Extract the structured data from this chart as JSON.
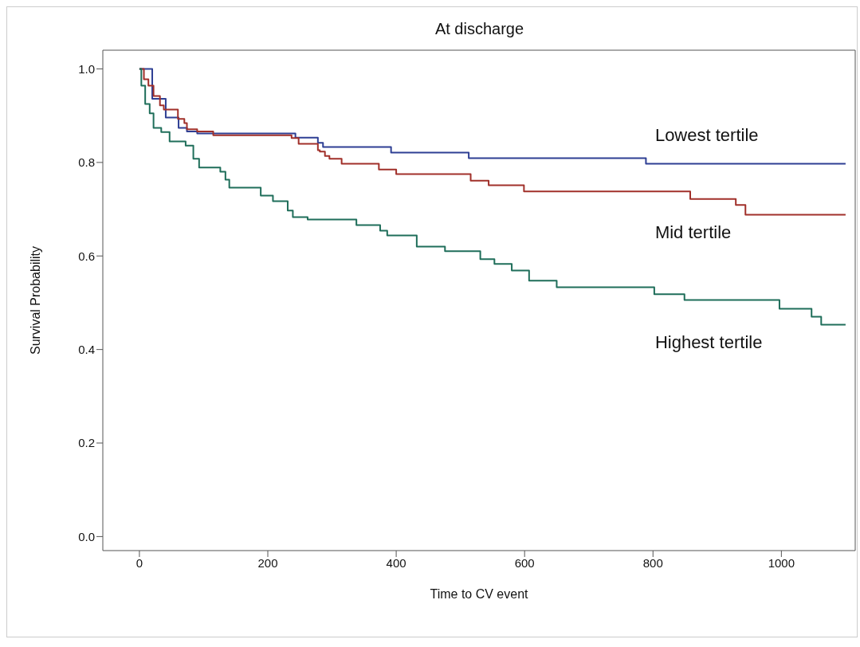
{
  "chart_data": {
    "type": "step",
    "title": "At discharge",
    "xlabel": "Time to CV event",
    "ylabel": "Survival Probability",
    "xlim": [
      -57,
      1115
    ],
    "ylim": [
      -0.03,
      1.04
    ],
    "xticks": [
      0,
      200,
      400,
      600,
      800,
      1000
    ],
    "yticks": [
      {
        "value": 0,
        "label": "0.0"
      },
      0.2,
      0.4,
      0.6,
      0.8,
      {
        "value": 1,
        "label": "1.0"
      }
    ],
    "legend": false,
    "marker": "none",
    "line_style": "solid",
    "series": [
      {
        "name": "Lowest tertile",
        "color": "#2e3f94",
        "x": [
          0,
          20,
          41,
          61,
          74,
          90,
          243,
          278,
          286,
          392,
          513,
          789,
          1100
        ],
        "values": [
          1.0,
          0.936,
          0.896,
          0.874,
          0.866,
          0.862,
          0.853,
          0.842,
          0.833,
          0.821,
          0.809,
          0.797,
          0.797
        ]
      },
      {
        "name": "Mid tertile",
        "color": "#a1302a",
        "x": [
          0,
          7,
          14,
          22,
          32,
          38,
          60,
          70,
          74,
          90,
          115,
          237,
          248,
          278,
          281,
          289,
          296,
          315,
          373,
          400,
          516,
          544,
          599,
          858,
          929,
          944,
          1100
        ],
        "values": [
          1.0,
          0.978,
          0.964,
          0.942,
          0.922,
          0.913,
          0.893,
          0.884,
          0.871,
          0.866,
          0.858,
          0.852,
          0.84,
          0.826,
          0.823,
          0.814,
          0.808,
          0.797,
          0.785,
          0.775,
          0.761,
          0.751,
          0.738,
          0.722,
          0.709,
          0.688,
          0.688
        ]
      },
      {
        "name": "Highest tertile",
        "color": "#1f6e5a",
        "x": [
          0,
          3,
          9,
          16,
          22,
          34,
          47,
          72,
          84,
          93,
          126,
          134,
          140,
          189,
          208,
          231,
          239,
          262,
          338,
          375,
          386,
          432,
          476,
          531,
          553,
          580,
          607,
          650,
          802,
          849,
          997,
          1047,
          1062,
          1100
        ],
        "values": [
          1.0,
          0.964,
          0.925,
          0.905,
          0.874,
          0.865,
          0.845,
          0.836,
          0.808,
          0.789,
          0.78,
          0.763,
          0.746,
          0.729,
          0.717,
          0.697,
          0.683,
          0.678,
          0.666,
          0.654,
          0.644,
          0.62,
          0.61,
          0.593,
          0.583,
          0.569,
          0.547,
          0.533,
          0.518,
          0.506,
          0.487,
          0.47,
          0.453,
          0.453
        ]
      }
    ]
  }
}
